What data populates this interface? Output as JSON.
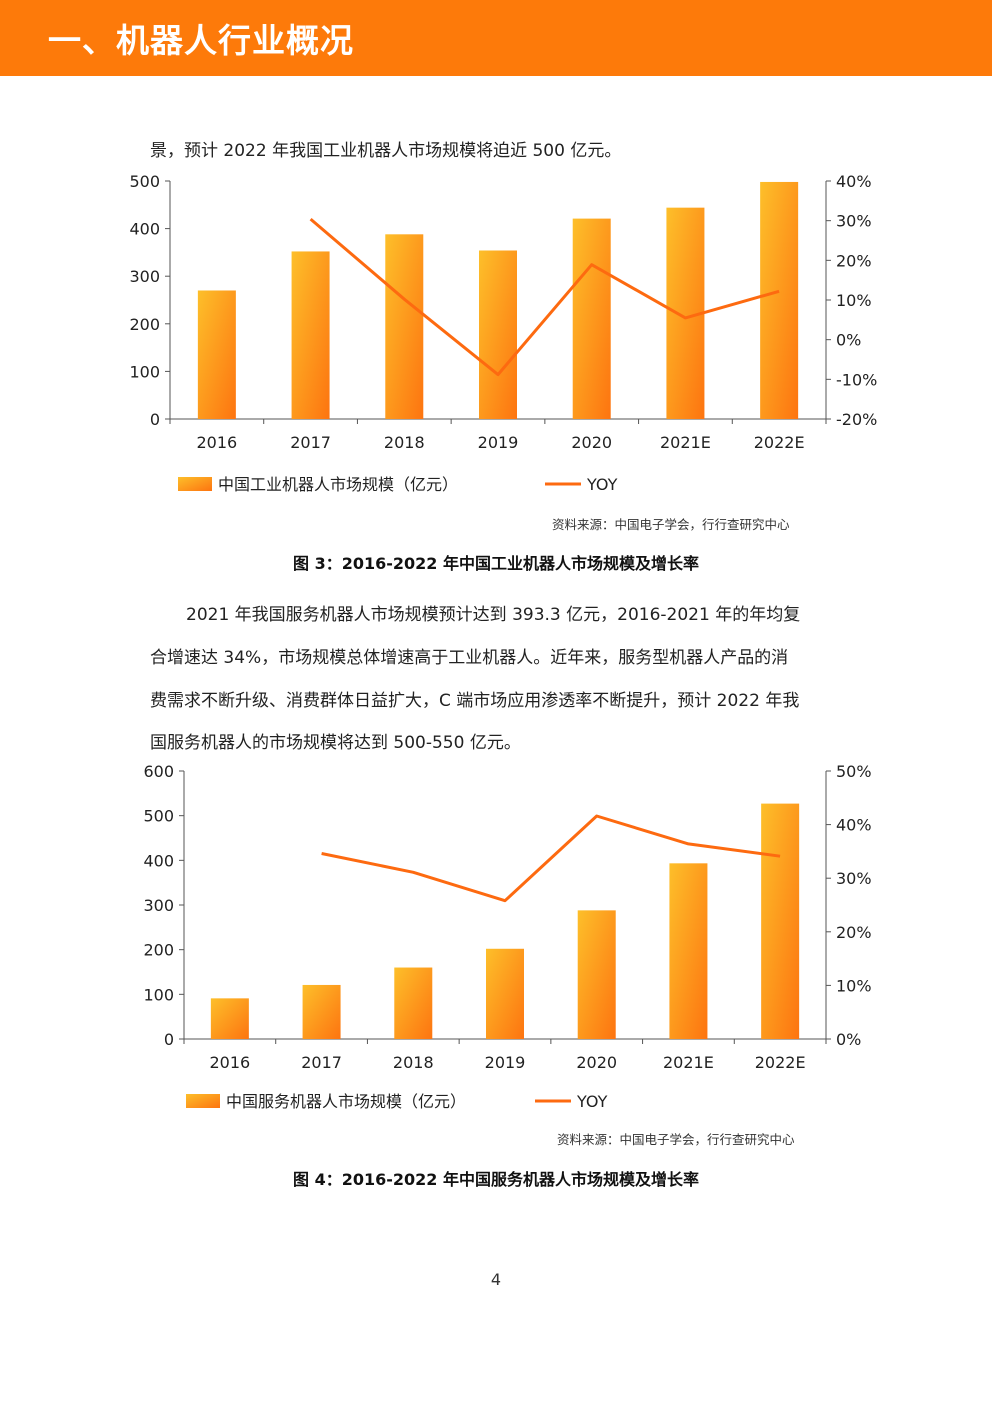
{
  "header": {
    "title": "一、机器人行业概况"
  },
  "para1": {
    "line1": "景，预计 2022 年我国工业机器人市场规模将迫近 500 亿元。"
  },
  "para2": {
    "lines": [
      "2021 年我国服务机器人市场规模预计达到 393.3 亿元，2016-2021 年的年均复",
      "合增速达 34%，市场规模总体增速高于工业机器人。近年来，服务型机器人产品的消",
      "费需求不断升级、消费群体日益扩大，C 端市场应用渗透率不断提升，预计 2022 年我",
      "国服务机器人的市场规模将达到 500-550 亿元。"
    ]
  },
  "chart_data": [
    {
      "type": "bar",
      "categories": [
        "2016",
        "2017",
        "2018",
        "2019",
        "2020",
        "2021E",
        "2022E"
      ],
      "series": [
        {
          "name": "中国工业机器人市场规模（亿元）",
          "type": "bar",
          "axis": "left",
          "values": [
            270,
            352,
            388,
            354,
            421,
            444,
            498
          ]
        },
        {
          "name": "YOY",
          "type": "line",
          "axis": "right",
          "values": [
            null,
            30.4,
            10.2,
            -8.8,
            18.9,
            5.5,
            12.2
          ]
        }
      ],
      "y_left": {
        "range": [
          0,
          500
        ],
        "ticks": [
          "0",
          "100",
          "200",
          "300",
          "400",
          "500"
        ]
      },
      "y_right": {
        "range": [
          -20,
          40
        ],
        "ticks": [
          "-20%",
          "-10%",
          "0%",
          "10%",
          "20%",
          "30%",
          "40%"
        ]
      },
      "legend_position": "bottom",
      "source": "资料来源：中国电子学会，行行查研究中心",
      "caption": "图 3：2016-2022 年中国工业机器人市场规模及增长率",
      "colors": {
        "bar": "#fbaa20",
        "line": "#fd6a10"
      }
    },
    {
      "type": "bar",
      "categories": [
        "2016",
        "2017",
        "2018",
        "2019",
        "2020",
        "2021E",
        "2022E"
      ],
      "series": [
        {
          "name": "中国服务机器人市场规模（亿元）",
          "type": "bar",
          "axis": "left",
          "values": [
            91,
            121,
            160,
            202,
            288,
            393.3,
            527
          ]
        },
        {
          "name": "YOY",
          "type": "line",
          "axis": "right",
          "values": [
            null,
            34.6,
            31.1,
            25.8,
            41.6,
            36.4,
            34.1
          ]
        }
      ],
      "y_left": {
        "range": [
          0,
          600
        ],
        "ticks": [
          "0",
          "100",
          "200",
          "300",
          "400",
          "500",
          "600"
        ]
      },
      "y_right": {
        "range": [
          0,
          50
        ],
        "ticks": [
          "0%",
          "10%",
          "20%",
          "30%",
          "40%",
          "50%"
        ]
      },
      "legend_position": "bottom",
      "source": "资料来源：中国电子学会，行行查研究中心",
      "caption": "图 4：2016-2022 年中国服务机器人市场规模及增长率",
      "colors": {
        "bar": "#fbaa20",
        "line": "#fd6a10"
      }
    }
  ],
  "footer": {
    "page_number": "4"
  }
}
